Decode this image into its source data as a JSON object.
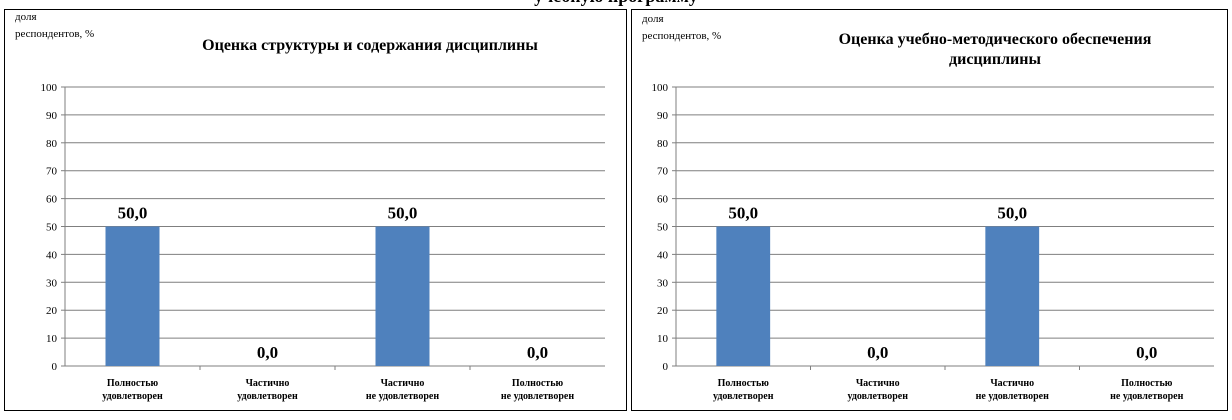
{
  "page_top_text": "учебную программу",
  "chart_data": [
    {
      "type": "bar",
      "title": "Оценка структуры и содержания дисциплины",
      "ylabel": "доля респондентов, %",
      "ylabel_lines": [
        "доля",
        "респондентов, %"
      ],
      "title_lines": [
        "Оценка структуры и содержания дисциплины"
      ],
      "categories": [
        [
          "Полностью",
          "удовлетворен"
        ],
        [
          "Частично",
          "удовлетворен"
        ],
        [
          "Частично",
          "не удовлетворен"
        ],
        [
          "Полностью",
          "не удовлетворен"
        ]
      ],
      "values": [
        50.0,
        0.0,
        50.0,
        0.0
      ],
      "value_labels": [
        "50,0",
        "0,0",
        "50,0",
        "0,0"
      ],
      "ylim": [
        0,
        100
      ],
      "yticks": [
        0,
        10,
        20,
        30,
        40,
        50,
        60,
        70,
        80,
        90,
        100
      ],
      "grid": true,
      "bar_color": "#4f81bd"
    },
    {
      "type": "bar",
      "title": "Оценка учебно-методического обеспечения дисциплины",
      "ylabel": "доля респондентов, %",
      "ylabel_lines": [
        "доля",
        "респондентов, %"
      ],
      "title_lines": [
        "Оценка учебно-методического обеспечения",
        "дисциплины"
      ],
      "categories": [
        [
          "Полностью",
          "удовлетворен"
        ],
        [
          "Частично",
          "удовлетворен"
        ],
        [
          "Частично",
          "не удовлетворен"
        ],
        [
          "Полностью",
          "не удовлетворен"
        ]
      ],
      "values": [
        50.0,
        0.0,
        50.0,
        0.0
      ],
      "value_labels": [
        "50,0",
        "0,0",
        "50,0",
        "0,0"
      ],
      "ylim": [
        0,
        100
      ],
      "yticks": [
        0,
        10,
        20,
        30,
        40,
        50,
        60,
        70,
        80,
        90,
        100
      ],
      "grid": true,
      "bar_color": "#4f81bd"
    }
  ]
}
